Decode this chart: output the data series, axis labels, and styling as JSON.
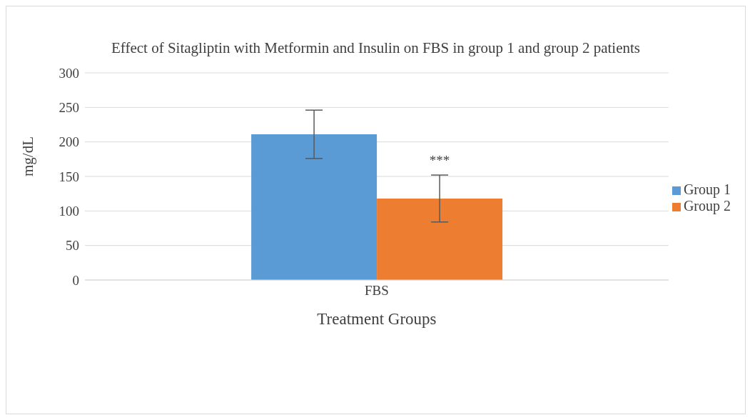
{
  "chart_data": {
    "type": "bar",
    "title": "Effect of Sitagliptin with Metformin and Insulin on FBS in group 1 and group 2 patients",
    "xlabel": "Treatment Groups",
    "ylabel": "mg/dL",
    "categories": [
      "FBS"
    ],
    "series": [
      {
        "name": "Group 1",
        "color": "#5b9bd5",
        "values": [
          211
        ],
        "errors": [
          35
        ]
      },
      {
        "name": "Group 2",
        "color": "#ed7d31",
        "values": [
          118
        ],
        "errors": [
          34
        ]
      }
    ],
    "ylim": [
      0,
      300
    ],
    "yticks": [
      0,
      50,
      100,
      150,
      200,
      250,
      300
    ],
    "grid": "y",
    "legend": "right",
    "annotations": [
      "***"
    ]
  }
}
